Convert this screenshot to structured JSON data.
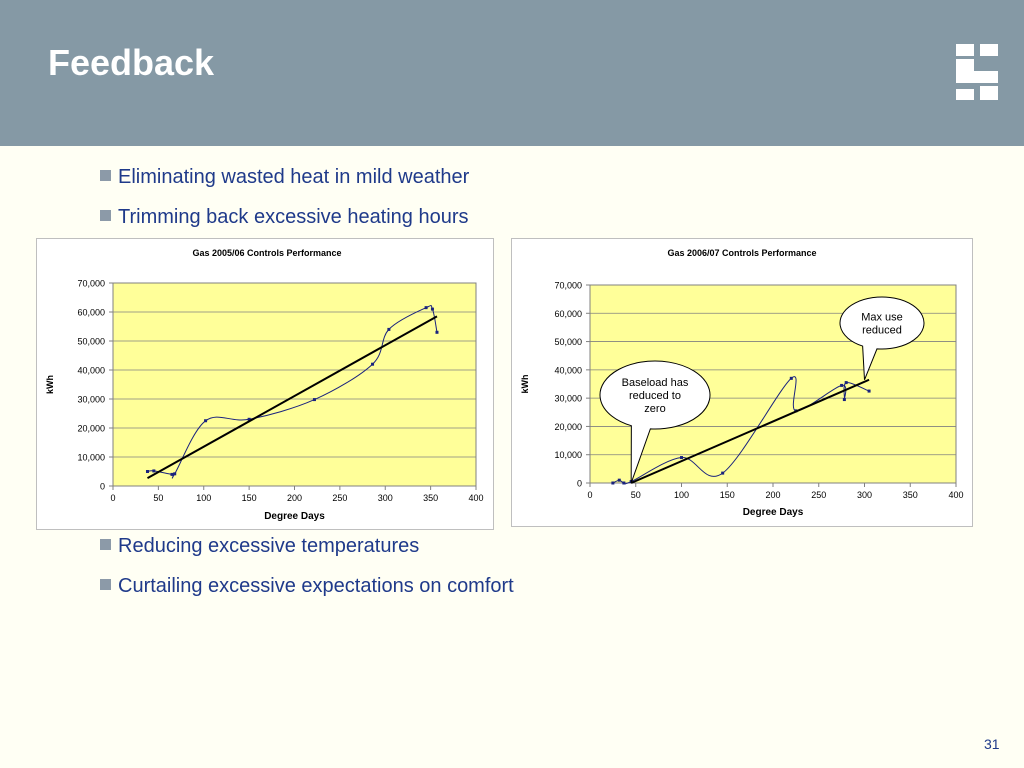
{
  "slide": {
    "title": "Feedback",
    "page_number": "31",
    "colors": {
      "header": "#8599a5",
      "background": "#fffff4",
      "bullet_text": "#1f3a8a",
      "plot_area": "#ffff99",
      "series_line": "#1a237e",
      "trend_line": "#000000"
    }
  },
  "bullets": {
    "b1": "Eliminating wasted heat in mild weather",
    "b2": "Trimming back excessive heating hours",
    "b3": "Reducing excessive temperatures",
    "b4": "Curtailing excessive expectations on comfort"
  },
  "chart_data": [
    {
      "type": "scatter",
      "title": "Gas 2005/06 Controls Performance",
      "xlabel": "Degree Days",
      "ylabel": "kWh",
      "xlim": [
        0,
        400
      ],
      "ylim": [
        0,
        70000
      ],
      "x_ticks": [
        "0",
        "50",
        "100",
        "150",
        "200",
        "250",
        "300",
        "350",
        "400"
      ],
      "y_ticks": [
        "0",
        "10,000",
        "20,000",
        "30,000",
        "40,000",
        "50,000",
        "60,000",
        "70,000"
      ],
      "grid": true,
      "series": [
        {
          "style": "smoothed line with markers",
          "x": [
            38,
            45,
            65,
            68,
            102,
            150,
            222,
            286,
            304,
            345,
            352,
            357
          ],
          "y": [
            5000,
            5200,
            4000,
            4200,
            22500,
            23000,
            29800,
            42000,
            54000,
            61500,
            61000,
            53000
          ]
        }
      ],
      "trendline": {
        "x": [
          38,
          357
        ],
        "y": [
          2700,
          58500
        ]
      },
      "annotations": []
    },
    {
      "type": "scatter",
      "title": "Gas 2006/07 Controls Performance",
      "xlabel": "Degree Days",
      "ylabel": "kWh",
      "xlim": [
        0,
        400
      ],
      "ylim": [
        0,
        70000
      ],
      "x_ticks": [
        "0",
        "50",
        "100",
        "150",
        "200",
        "250",
        "300",
        "350",
        "400"
      ],
      "y_ticks": [
        "0",
        "10,000",
        "20,000",
        "30,000",
        "40,000",
        "50,000",
        "60,000",
        "70,000"
      ],
      "grid": true,
      "series": [
        {
          "style": "smoothed line with markers",
          "x": [
            25,
            32,
            37,
            45,
            100,
            145,
            220,
            225,
            275,
            278,
            280,
            305
          ],
          "y": [
            0,
            1000,
            0,
            500,
            9000,
            3500,
            37000,
            25500,
            34500,
            29500,
            35500,
            32500
          ]
        }
      ],
      "trendline": {
        "x": [
          45,
          305
        ],
        "y": [
          0,
          36500
        ]
      },
      "annotations": [
        {
          "text": "Baseload has reduced to zero",
          "points_to": {
            "x": 45,
            "y": 0
          }
        },
        {
          "text": "Max use reduced",
          "points_to": {
            "x": 300,
            "y": 36500
          }
        }
      ]
    }
  ]
}
